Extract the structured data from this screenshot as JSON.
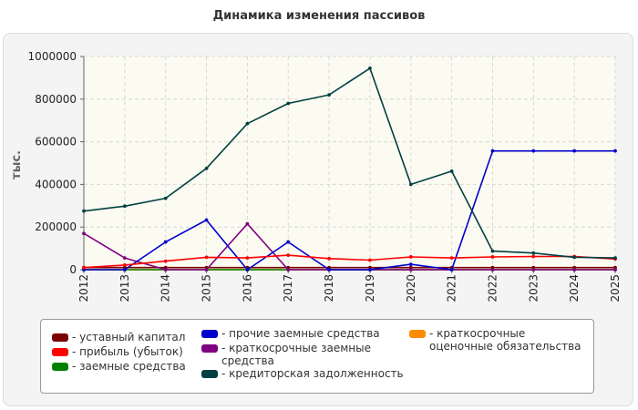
{
  "chart_data": {
    "type": "line",
    "title": "Динамика изменения пассивов",
    "ylabel": "тыс.",
    "xlabel": "",
    "x": [
      "2012",
      "2013",
      "2014",
      "2015",
      "2016",
      "2017",
      "2018",
      "2019",
      "2020",
      "2021",
      "2022",
      "2023",
      "2024",
      "2025"
    ],
    "ylim": [
      0,
      1000000
    ],
    "yticks": [
      0,
      200000,
      400000,
      600000,
      800000,
      1000000
    ],
    "ytick_labels": [
      "0",
      "200000",
      "400000",
      "600000",
      "800000",
      "1000000"
    ],
    "grid": true,
    "legend_position": "bottom",
    "series": [
      {
        "name": "- уставный капитал",
        "color": "#7b0000",
        "values": [
          10000,
          10000,
          10000,
          10000,
          10000,
          10000,
          10000,
          10000,
          10000,
          10000,
          10000,
          10000,
          10000,
          10000
        ]
      },
      {
        "name": "- прибыль (убыток)",
        "color": "#ff0000",
        "values": [
          10000,
          22000,
          40000,
          58000,
          55000,
          68000,
          52000,
          45000,
          60000,
          55000,
          60000,
          62000,
          62000,
          50000
        ]
      },
      {
        "name": "- заемные средства",
        "color": "#008000",
        "values": [
          0,
          0,
          0,
          0,
          0,
          0,
          0,
          0,
          0,
          0,
          0,
          0,
          0,
          0
        ]
      },
      {
        "name": "- прочие заемные средства",
        "color": "#0000cc",
        "values": [
          0,
          0,
          130000,
          233000,
          0,
          130000,
          0,
          0,
          25000,
          0,
          557000,
          557000,
          557000,
          557000
        ]
      },
      {
        "name": "- краткосрочные заемные средства",
        "color": "#800080",
        "values": [
          170000,
          55000,
          0,
          0,
          215000,
          0,
          0,
          0,
          0,
          0,
          0,
          0,
          0,
          0
        ]
      },
      {
        "name": "- кредиторская задолженность",
        "color": "#004040",
        "values": [
          275000,
          298000,
          335000,
          475000,
          685000,
          780000,
          820000,
          945000,
          400000,
          462000,
          87000,
          78000,
          58000,
          55000
        ]
      },
      {
        "name": "- краткосрочные оценочные обязательства",
        "color": "#ff8c00",
        "values": [
          0,
          0,
          0,
          0,
          0,
          0,
          0,
          0,
          0,
          0,
          0,
          0,
          0,
          0
        ]
      }
    ]
  }
}
